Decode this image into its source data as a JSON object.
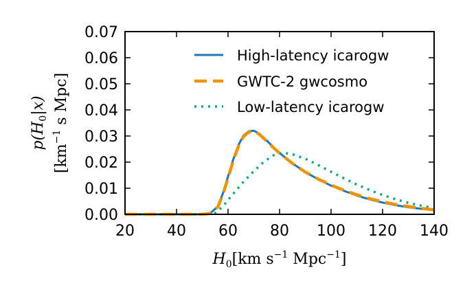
{
  "chart_data": {
    "type": "line",
    "title": "",
    "xlabel_parts": {
      "symbol": "H",
      "sub": "0",
      "units_a": "[km s",
      "exp_a": "−1",
      "units_b": " Mpc",
      "exp_b": "−1",
      "units_c": "]"
    },
    "ylabel_parts": {
      "line1_a": "p(H",
      "line1_sub": "0",
      "line1_b": "|x)",
      "line2_a": "[km",
      "line2_exp": "−1",
      "line2_b": " s Mpc]"
    },
    "xlim": [
      20,
      140
    ],
    "ylim": [
      0.0,
      0.07
    ],
    "xticks": [
      20,
      40,
      60,
      80,
      100,
      120,
      140
    ],
    "xtick_labels": [
      "20",
      "40",
      "60",
      "80",
      "100",
      "120",
      "140"
    ],
    "yticks": [
      0.0,
      0.01,
      0.02,
      0.03,
      0.04,
      0.05,
      0.06,
      0.07
    ],
    "ytick_labels": [
      "0.00",
      "0.01",
      "0.02",
      "0.03",
      "0.04",
      "0.05",
      "0.06",
      "0.07"
    ],
    "legend_position": "top-right",
    "series": [
      {
        "name": "High-latency icarogw",
        "color": "#1f77b4",
        "style": "solid",
        "x": [
          20,
          30,
          40,
          50,
          53,
          56,
          58,
          60,
          62,
          64,
          66,
          68,
          70,
          72,
          74,
          76,
          78,
          80,
          85,
          90,
          95,
          100,
          105,
          110,
          115,
          120,
          125,
          130,
          135,
          140
        ],
        "y": [
          0.0,
          0.0,
          0.0,
          0.0,
          0.0003,
          0.003,
          0.008,
          0.0145,
          0.021,
          0.0265,
          0.0302,
          0.0318,
          0.032,
          0.031,
          0.0292,
          0.0273,
          0.0253,
          0.0235,
          0.0195,
          0.0162,
          0.0134,
          0.011,
          0.009,
          0.0072,
          0.0057,
          0.0045,
          0.0035,
          0.0027,
          0.0021,
          0.0016
        ]
      },
      {
        "name": "GWTC-2 gwcosmo",
        "color": "#e8950c",
        "style": "dashed",
        "x": [
          20,
          30,
          40,
          50,
          53,
          56,
          58,
          60,
          62,
          64,
          66,
          68,
          70,
          72,
          74,
          76,
          78,
          80,
          85,
          90,
          95,
          100,
          105,
          110,
          115,
          120,
          125,
          130,
          135,
          140
        ],
        "y": [
          0.0,
          0.0,
          0.0,
          0.0,
          0.0003,
          0.0028,
          0.0075,
          0.014,
          0.0205,
          0.026,
          0.0298,
          0.0315,
          0.0316,
          0.0308,
          0.029,
          0.0271,
          0.0252,
          0.0234,
          0.0195,
          0.0162,
          0.0135,
          0.0112,
          0.0092,
          0.0075,
          0.006,
          0.0048,
          0.0038,
          0.003,
          0.0023,
          0.0017
        ]
      },
      {
        "name": "Low-latency icarogw",
        "color": "#12a37c",
        "style": "dotted",
        "x": [
          20,
          30,
          40,
          50,
          55,
          58,
          60,
          63,
          66,
          70,
          74,
          78,
          80,
          82,
          85,
          90,
          95,
          100,
          105,
          110,
          115,
          120,
          125,
          130,
          135,
          140
        ],
        "y": [
          0.0,
          0.0,
          0.0,
          0.0,
          0.0005,
          0.003,
          0.0055,
          0.009,
          0.0125,
          0.0165,
          0.0202,
          0.0228,
          0.0234,
          0.0235,
          0.023,
          0.0213,
          0.0189,
          0.0163,
          0.0138,
          0.0114,
          0.0093,
          0.0074,
          0.0058,
          0.0044,
          0.0033,
          0.0024
        ]
      }
    ]
  }
}
